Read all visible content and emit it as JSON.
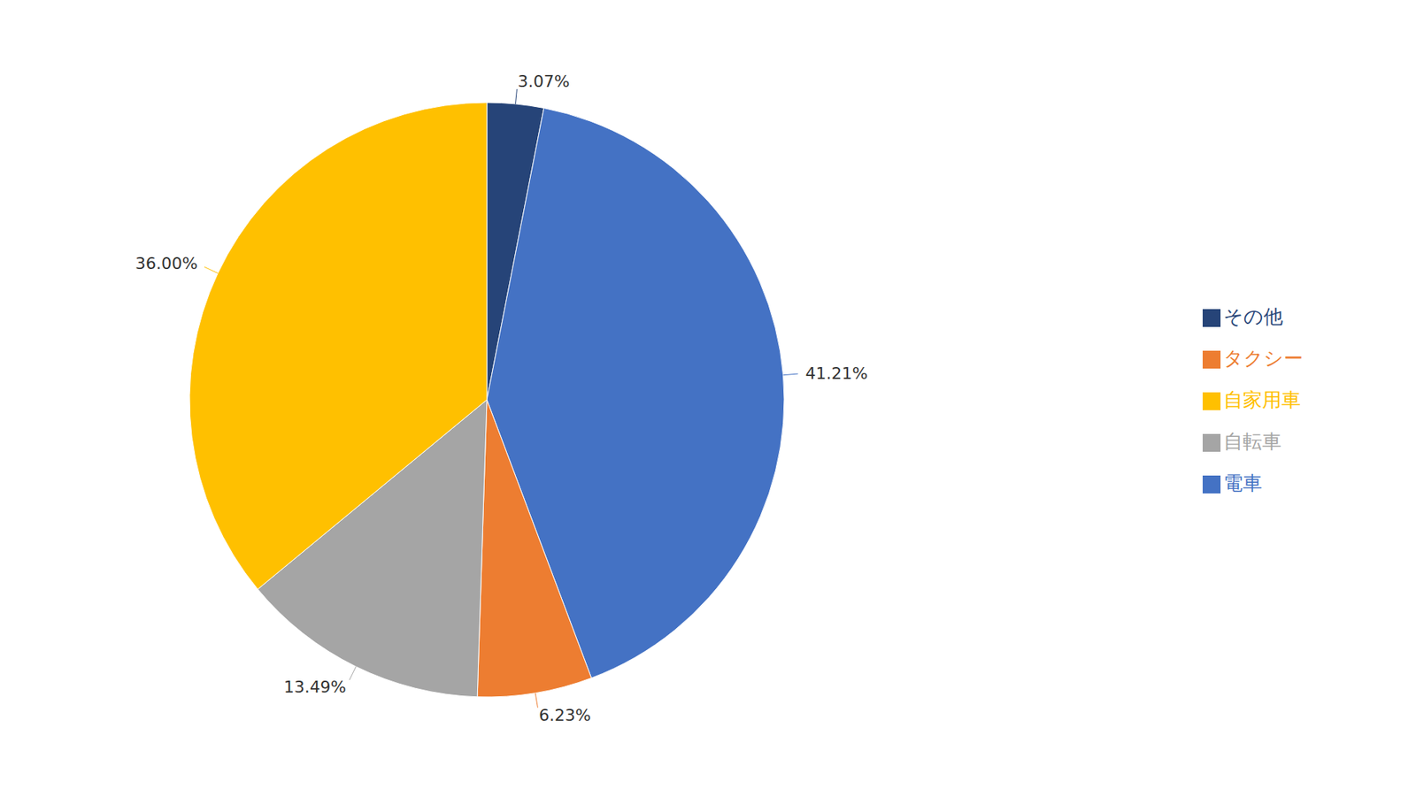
{
  "chart_data": {
    "type": "pie",
    "categories": [
      "その他",
      "電車",
      "タクシー",
      "自転車",
      "自家用車"
    ],
    "values": [
      3.07,
      41.21,
      6.23,
      13.49,
      36.0
    ],
    "value_labels": [
      "3.07%",
      "41.21%",
      "6.23%",
      "13.49%",
      "36.00%"
    ],
    "colors": [
      "#264478",
      "#4472C4",
      "#ED7D31",
      "#A5A5A5",
      "#FFC000"
    ],
    "data_labels": true,
    "legend": "right"
  }
}
